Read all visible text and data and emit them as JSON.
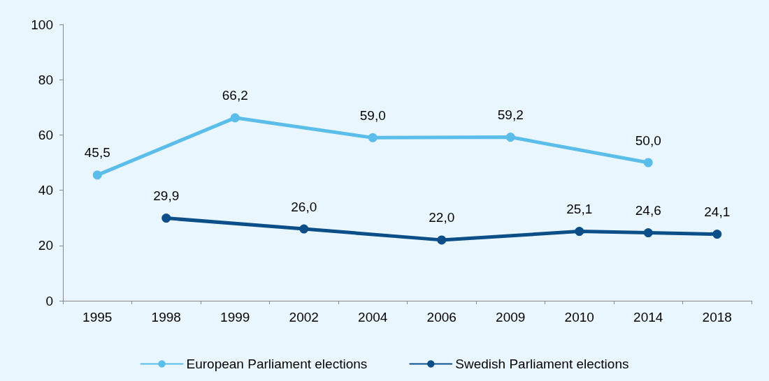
{
  "chart_data": {
    "type": "line",
    "categories": [
      "1995",
      "1998",
      "1999",
      "2002",
      "2004",
      "2006",
      "2009",
      "2010",
      "2014",
      "2018"
    ],
    "series": [
      {
        "name": "European Parliament elections",
        "color": "#5bbde9",
        "values": [
          45.5,
          null,
          66.2,
          null,
          59.0,
          null,
          59.2,
          null,
          50.0,
          null
        ],
        "value_labels": [
          "45,5",
          null,
          "66,2",
          null,
          "59,0",
          null,
          "59,2",
          null,
          "50,0",
          null
        ]
      },
      {
        "name": "Swedish Parliament elections",
        "color": "#0b4e88",
        "values": [
          null,
          29.9,
          null,
          26.0,
          null,
          22.0,
          null,
          25.1,
          24.6,
          24.1
        ],
        "value_labels": [
          null,
          "29,9",
          null,
          "26,0",
          null,
          "22,0",
          null,
          "25,1",
          "24,6",
          "24,1"
        ]
      }
    ],
    "ylim": [
      0,
      100
    ],
    "yticks": [
      0,
      20,
      40,
      60,
      80,
      100
    ],
    "grid": false,
    "legend": "bottom",
    "marker": "circle",
    "line_style": "solid"
  }
}
